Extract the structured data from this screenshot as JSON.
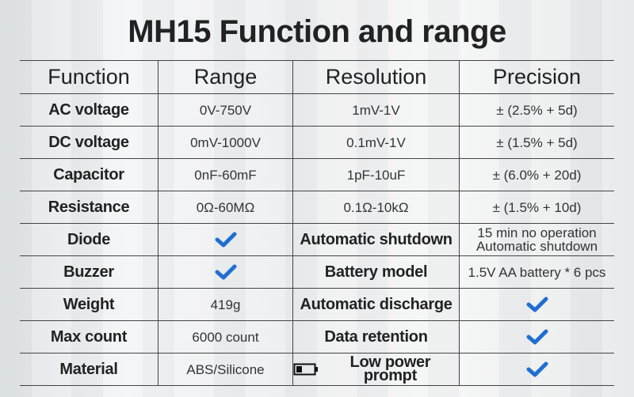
{
  "header": {
    "title": "MH15 Function and range"
  },
  "table": {
    "columns": [
      "Function",
      "Range",
      "Resolution",
      "Precision"
    ],
    "rows": [
      [
        "AC voltage",
        "0V-750V",
        "1mV-1V",
        "± (2.5% + 5d)"
      ],
      [
        "DC voltage",
        "0mV-1000V",
        "0.1mV-1V",
        "± (1.5% + 5d)"
      ],
      [
        "Capacitor",
        "0nF-60mF",
        "1pF-10uF",
        "± (6.0% + 20d)"
      ],
      [
        "Resistance",
        "0Ω-60MΩ",
        "0.1Ω-10kΩ",
        "± (1.5% + 10d)"
      ],
      [
        "Diode",
        null,
        "Automatic shutdown",
        [
          "15 min no operation",
          "Automatic shutdown"
        ]
      ],
      [
        "Buzzer",
        null,
        "Battery model",
        "1.5V AA battery * 6 pcs"
      ],
      [
        "Weight",
        "419g",
        "Automatic discharge",
        null
      ],
      [
        "Max count",
        "6000 count",
        "Data retention",
        null
      ],
      [
        "Material",
        "ABS/Silicone",
        "Low power prompt",
        null
      ]
    ]
  }
}
